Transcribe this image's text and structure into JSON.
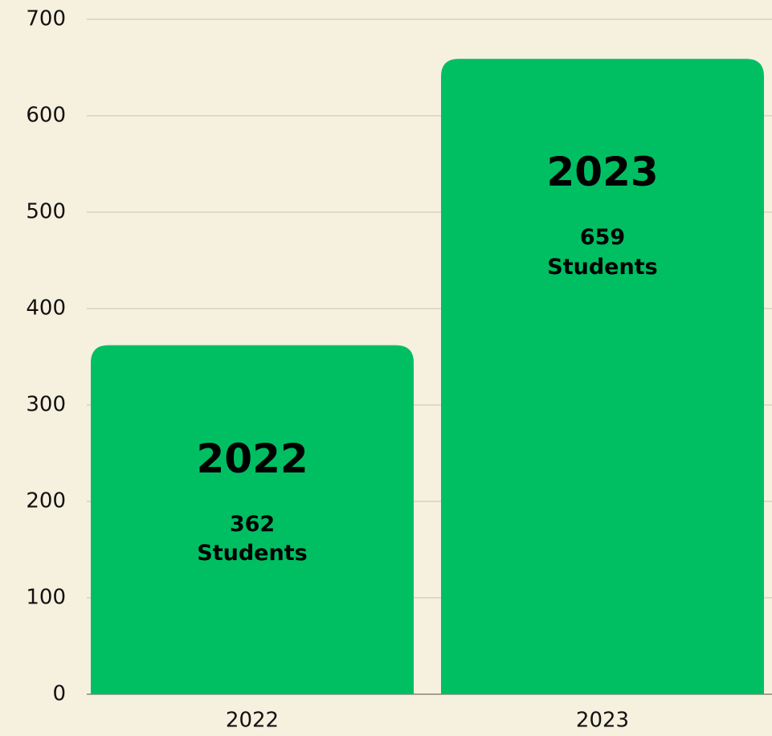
{
  "chart_data": {
    "type": "bar",
    "categories": [
      "2022",
      "2023"
    ],
    "values": [
      362,
      659
    ],
    "value_labels": [
      "362 Students",
      "659 Students"
    ],
    "color": "#00bf63",
    "ylim": [
      0,
      700
    ],
    "yticks": [
      0,
      100,
      200,
      300,
      400,
      500,
      600,
      700
    ],
    "grid": true
  }
}
